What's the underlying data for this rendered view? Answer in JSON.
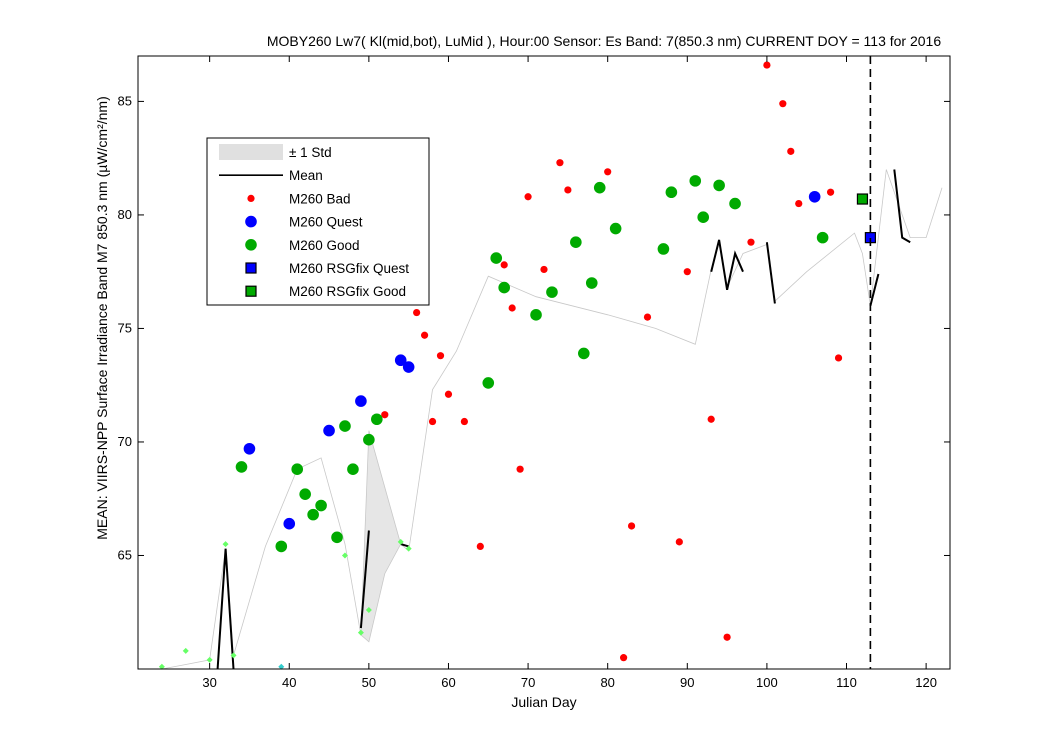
{
  "chart_data": {
    "type": "scatter",
    "title": "MOBY260   Lw7( Kl(mid,bot), LuMid ),   Hour:00 Sensor: Es Band: 7(850.3 nm)   CURRENT DOY = 113 for 2016",
    "xlabel": "Julian Day",
    "ylabel": "MEAN: VIIRS-NPP Surface Irradiance Band M7 850.3 nm (µW/cm²/nm)",
    "xlim": [
      21,
      123
    ],
    "ylim": [
      60,
      87
    ],
    "xticks": [
      30,
      40,
      50,
      60,
      70,
      80,
      90,
      100,
      110,
      120
    ],
    "yticks": [
      65,
      70,
      75,
      80,
      85
    ],
    "grid": false,
    "legend_position": "upper-left",
    "current_doy": 113,
    "legend": [
      {
        "label": "± 1 Std",
        "kind": "patch",
        "color": "#e0e0e0"
      },
      {
        "label": "Mean",
        "kind": "line",
        "color": "#000000"
      },
      {
        "label": "M260 Bad",
        "kind": "dot",
        "color": "#ff0000"
      },
      {
        "label": "M260 Quest",
        "kind": "circle",
        "color": "#0000ff"
      },
      {
        "label": "M260 Good",
        "kind": "circle",
        "color": "#00aa00"
      },
      {
        "label": "M260 RSGfix Quest",
        "kind": "square",
        "color": "#0000ff"
      },
      {
        "label": "M260 RSGfix Good",
        "kind": "square",
        "color": "#00aa00"
      }
    ],
    "std_band": {
      "x": [
        24,
        27,
        30,
        32,
        33,
        37,
        41,
        44,
        47,
        49,
        50,
        52,
        54,
        55,
        58,
        61,
        65,
        71,
        80,
        86,
        91,
        93,
        94,
        95,
        97,
        100,
        101,
        105,
        111,
        112,
        113,
        115,
        118,
        120,
        122
      ],
      "upper": [
        60,
        60.2,
        60.4,
        65.3,
        60.6,
        65.4,
        68.8,
        69.3,
        65.5,
        61.5,
        70.5,
        68.0,
        65.5,
        65.2,
        72.3,
        74.0,
        77.3,
        76.4,
        75.6,
        75.0,
        74.3,
        77.6,
        78.9,
        76.8,
        78.3,
        78.7,
        76.2,
        77.5,
        79.2,
        78.3,
        76.0,
        82.0,
        79.0,
        79.0,
        81.2
      ],
      "lower": [
        60,
        60.2,
        60.4,
        65.3,
        60.6,
        65.4,
        68.8,
        69.3,
        65.5,
        61.5,
        61.2,
        64.2,
        65.5,
        65.2,
        72.3,
        74.0,
        77.3,
        76.4,
        75.6,
        75.0,
        74.3,
        77.6,
        78.9,
        76.8,
        78.3,
        78.7,
        76.2,
        77.5,
        79.2,
        78.3,
        76.0,
        82.0,
        79.0,
        79.0,
        81.2
      ]
    },
    "mean_segments": [
      [
        [
          31,
          60
        ],
        [
          32,
          65.3
        ],
        [
          33,
          60.0
        ]
      ],
      [
        [
          49,
          61.8
        ],
        [
          50,
          66.1
        ]
      ],
      [
        [
          54,
          65.5
        ],
        [
          55,
          65.4
        ]
      ],
      [
        [
          93,
          77.5
        ],
        [
          94,
          78.9
        ],
        [
          95,
          76.7
        ],
        [
          96,
          78.3
        ],
        [
          97,
          77.5
        ]
      ],
      [
        [
          100,
          78.8
        ],
        [
          101,
          76.1
        ]
      ],
      [
        [
          113,
          76.0
        ],
        [
          114,
          77.4
        ]
      ],
      [
        [
          116,
          82.0
        ],
        [
          117,
          79.0
        ],
        [
          118,
          78.8
        ]
      ]
    ],
    "series": [
      {
        "name": "M260 Bad",
        "marker": "dot",
        "color": "#ff0000",
        "x": [
          52,
          56,
          57,
          58,
          59,
          60,
          62,
          64,
          67,
          68,
          69,
          70,
          72,
          74,
          75,
          80,
          82,
          83,
          85,
          89,
          90,
          93,
          95,
          98,
          100,
          102,
          103,
          104,
          108,
          109
        ],
        "y": [
          71.2,
          75.7,
          74.7,
          70.9,
          73.8,
          72.1,
          70.9,
          65.4,
          77.8,
          75.9,
          68.8,
          80.8,
          77.6,
          82.3,
          81.1,
          81.9,
          60.5,
          66.3,
          75.5,
          65.6,
          77.5,
          71.0,
          61.4,
          78.8,
          86.6,
          84.9,
          82.8,
          80.5,
          81.0,
          73.7
        ]
      },
      {
        "name": "M260 Quest",
        "marker": "circle",
        "color": "#0000ff",
        "x": [
          35,
          40,
          45,
          49,
          54,
          55,
          106
        ],
        "y": [
          69.7,
          66.4,
          70.5,
          71.8,
          73.6,
          73.3,
          80.8
        ]
      },
      {
        "name": "M260 Good",
        "marker": "circle",
        "color": "#00aa00",
        "x": [
          34,
          39,
          41,
          42,
          43,
          44,
          46,
          47,
          48,
          50,
          51,
          65,
          66,
          67,
          71,
          73,
          76,
          77,
          78,
          79,
          81,
          87,
          88,
          91,
          92,
          94,
          96,
          107
        ],
        "y": [
          68.9,
          65.4,
          68.8,
          67.7,
          66.8,
          67.2,
          65.8,
          70.7,
          68.8,
          70.1,
          71.0,
          72.6,
          78.1,
          76.8,
          75.6,
          76.6,
          78.8,
          73.9,
          77.0,
          81.2,
          79.4,
          78.5,
          81.0,
          81.5,
          79.9,
          81.3,
          80.5,
          79.0
        ]
      },
      {
        "name": "M260 RSGfix Quest",
        "marker": "square",
        "color": "#0000ff",
        "x": [
          113
        ],
        "y": [
          79.0
        ]
      },
      {
        "name": "M260 RSGfix Good",
        "marker": "square",
        "color": "#00aa00",
        "x": [
          112
        ],
        "y": [
          80.7
        ]
      },
      {
        "name": "",
        "marker": "diamond",
        "color": "#66ff66",
        "x": [
          24,
          27,
          30,
          32,
          33,
          47,
          49,
          50,
          54,
          55
        ],
        "y": [
          60.1,
          60.8,
          60.4,
          65.5,
          60.6,
          65.0,
          61.6,
          62.6,
          65.6,
          65.3
        ]
      },
      {
        "name": "",
        "marker": "diamond",
        "color": "#33cccc",
        "x": [
          39
        ],
        "y": [
          60.1
        ]
      }
    ]
  }
}
